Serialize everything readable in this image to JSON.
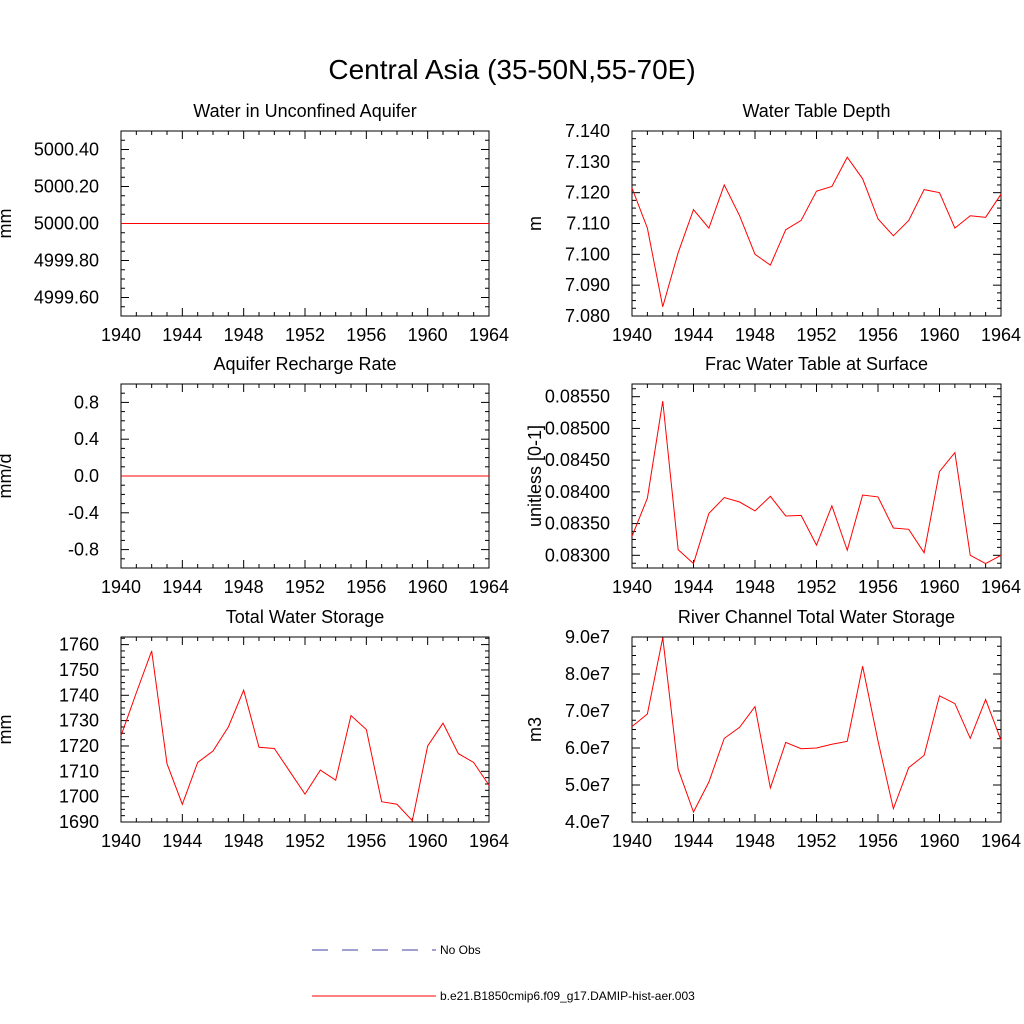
{
  "title": "Central Asia (35-50N,55-70E)",
  "colors": {
    "model": "#ff0000",
    "obs": "#4040a0",
    "axis": "#000000"
  },
  "legend": {
    "obs_label": "No Obs",
    "model_label": "b.e21.B1850cmip6.f09_g17.DAMIP-hist-aer.003"
  },
  "chart_data": [
    {
      "type": "line",
      "title": "Water in Unconfined Aquifer",
      "ylabel": "mm",
      "xlim": [
        1940,
        1964
      ],
      "ylim": [
        4999.5,
        5000.5
      ],
      "xticks": [
        1940,
        1944,
        1948,
        1952,
        1956,
        1960,
        1964
      ],
      "xtick_labels": [
        "1940",
        "1944",
        "1948",
        "1952",
        "1956",
        "1960",
        "1964"
      ],
      "yticks": [
        4999.6,
        4999.8,
        5000.0,
        5000.2,
        5000.4
      ],
      "ytick_labels": [
        "4999.60",
        "4999.80",
        "5000.00",
        "5000.20",
        "5000.40"
      ],
      "x": [
        1940,
        1941,
        1942,
        1943,
        1944,
        1945,
        1946,
        1947,
        1948,
        1949,
        1950,
        1951,
        1952,
        1953,
        1954,
        1955,
        1956,
        1957,
        1958,
        1959,
        1960,
        1961,
        1962,
        1963,
        1964
      ],
      "series": [
        {
          "values": [
            5000,
            5000,
            5000,
            5000,
            5000,
            5000,
            5000,
            5000,
            5000,
            5000,
            5000,
            5000,
            5000,
            5000,
            5000,
            5000,
            5000,
            5000,
            5000,
            5000,
            5000,
            5000,
            5000,
            5000,
            5000
          ]
        }
      ]
    },
    {
      "type": "line",
      "title": "Water Table Depth",
      "ylabel": "m",
      "xlim": [
        1940,
        1964
      ],
      "ylim": [
        7.08,
        7.14
      ],
      "xticks": [
        1940,
        1944,
        1948,
        1952,
        1956,
        1960,
        1964
      ],
      "xtick_labels": [
        "1940",
        "1944",
        "1948",
        "1952",
        "1956",
        "1960",
        "1964"
      ],
      "yticks": [
        7.08,
        7.09,
        7.1,
        7.11,
        7.12,
        7.13,
        7.14
      ],
      "ytick_labels": [
        "7.080",
        "7.090",
        "7.100",
        "7.110",
        "7.120",
        "7.130",
        "7.140"
      ],
      "x": [
        1940,
        1941,
        1942,
        1943,
        1944,
        1945,
        1946,
        1947,
        1948,
        1949,
        1950,
        1951,
        1952,
        1953,
        1954,
        1955,
        1956,
        1957,
        1958,
        1959,
        1960,
        1961,
        1962,
        1963,
        1964
      ],
      "series": [
        {
          "values": [
            7.1215,
            7.1085,
            7.083,
            7.1005,
            7.1145,
            7.1085,
            7.1225,
            7.1125,
            7.1,
            7.0965,
            7.108,
            7.111,
            7.1205,
            7.122,
            7.1315,
            7.1245,
            7.1115,
            7.106,
            7.111,
            7.121,
            7.12,
            7.1085,
            7.1125,
            7.112,
            7.1195
          ]
        }
      ]
    },
    {
      "type": "line",
      "title": "Aquifer Recharge Rate",
      "ylabel": "mm/d",
      "xlim": [
        1940,
        1964
      ],
      "ylim": [
        -1.0,
        1.0
      ],
      "xticks": [
        1940,
        1944,
        1948,
        1952,
        1956,
        1960,
        1964
      ],
      "xtick_labels": [
        "1940",
        "1944",
        "1948",
        "1952",
        "1956",
        "1960",
        "1964"
      ],
      "yticks": [
        -0.8,
        -0.4,
        0.0,
        0.4,
        0.8
      ],
      "ytick_labels": [
        "-0.8",
        "-0.4",
        "0.0",
        "0.4",
        "0.8"
      ],
      "x": [
        1940,
        1941,
        1942,
        1943,
        1944,
        1945,
        1946,
        1947,
        1948,
        1949,
        1950,
        1951,
        1952,
        1953,
        1954,
        1955,
        1956,
        1957,
        1958,
        1959,
        1960,
        1961,
        1962,
        1963,
        1964
      ],
      "series": [
        {
          "values": [
            0,
            0,
            0,
            0,
            0,
            0,
            0,
            0,
            0,
            0,
            0,
            0,
            0,
            0,
            0,
            0,
            0,
            0,
            0,
            0,
            0,
            0,
            0,
            0,
            0
          ]
        }
      ]
    },
    {
      "type": "line",
      "title": "Frac Water Table at Surface",
      "ylabel": "unitless [0-1]",
      "xlim": [
        1940,
        1964
      ],
      "ylim": [
        0.0828,
        0.0857
      ],
      "xticks": [
        1940,
        1944,
        1948,
        1952,
        1956,
        1960,
        1964
      ],
      "xtick_labels": [
        "1940",
        "1944",
        "1948",
        "1952",
        "1956",
        "1960",
        "1964"
      ],
      "yticks": [
        0.083,
        0.0835,
        0.084,
        0.0845,
        0.085,
        0.0855
      ],
      "ytick_labels": [
        "0.08300",
        "0.08350",
        "0.08400",
        "0.08450",
        "0.08500",
        "0.08550"
      ],
      "x": [
        1940,
        1941,
        1942,
        1943,
        1944,
        1945,
        1946,
        1947,
        1948,
        1949,
        1950,
        1951,
        1952,
        1953,
        1954,
        1955,
        1956,
        1957,
        1958,
        1959,
        1960,
        1961,
        1962,
        1963,
        1964
      ],
      "series": [
        {
          "values": [
            0.0833,
            0.0839,
            0.08543,
            0.08309,
            0.08287,
            0.08366,
            0.08391,
            0.08384,
            0.0837,
            0.08393,
            0.08362,
            0.08363,
            0.08316,
            0.08378,
            0.08308,
            0.08395,
            0.08392,
            0.08343,
            0.08341,
            0.08304,
            0.08432,
            0.08462,
            0.083,
            0.08287,
            0.083
          ]
        }
      ]
    },
    {
      "type": "line",
      "title": "Total Water Storage",
      "ylabel": "mm",
      "xlim": [
        1940,
        1964
      ],
      "ylim": [
        1690,
        1763
      ],
      "xticks": [
        1940,
        1944,
        1948,
        1952,
        1956,
        1960,
        1964
      ],
      "xtick_labels": [
        "1940",
        "1944",
        "1948",
        "1952",
        "1956",
        "1960",
        "1964"
      ],
      "yticks": [
        1690,
        1700,
        1710,
        1720,
        1730,
        1740,
        1750,
        1760
      ],
      "ytick_labels": [
        "1690",
        "1700",
        "1710",
        "1720",
        "1730",
        "1740",
        "1750",
        "1760"
      ],
      "x": [
        1940,
        1941,
        1942,
        1943,
        1944,
        1945,
        1946,
        1947,
        1948,
        1949,
        1950,
        1951,
        1952,
        1953,
        1954,
        1955,
        1956,
        1957,
        1958,
        1959,
        1960,
        1961,
        1962,
        1963,
        1964
      ],
      "series": [
        {
          "values": [
            1724,
            1741,
            1757.5,
            1713,
            1697,
            1713.5,
            1718,
            1727.5,
            1742,
            1719.5,
            1719,
            1710,
            1701,
            1710.5,
            1706.5,
            1732,
            1726.5,
            1698,
            1697,
            1690.5,
            1720,
            1729,
            1717,
            1713.5,
            1704.5
          ]
        }
      ]
    },
    {
      "type": "line",
      "title": "River Channel Total Water Storage",
      "ylabel": "m3",
      "xlim": [
        1940,
        1964
      ],
      "ylim": [
        40000000,
        90000000
      ],
      "xticks": [
        1940,
        1944,
        1948,
        1952,
        1956,
        1960,
        1964
      ],
      "xtick_labels": [
        "1940",
        "1944",
        "1948",
        "1952",
        "1956",
        "1960",
        "1964"
      ],
      "yticks": [
        40000000,
        50000000,
        60000000,
        70000000,
        80000000,
        90000000
      ],
      "ytick_labels": [
        "4.0e7",
        "5.0e7",
        "6.0e7",
        "7.0e7",
        "8.0e7",
        "9.0e7"
      ],
      "x": [
        1940,
        1941,
        1942,
        1943,
        1944,
        1945,
        1946,
        1947,
        1948,
        1949,
        1950,
        1951,
        1952,
        1953,
        1954,
        1955,
        1956,
        1957,
        1958,
        1959,
        1960,
        1961,
        1962,
        1963,
        1964
      ],
      "series": [
        {
          "values": [
            65800000,
            69200000,
            89800000,
            54300000,
            42700000,
            50800000,
            62600000,
            65600000,
            71200000,
            49200000,
            61500000,
            59800000,
            60000000,
            61000000,
            61800000,
            82100000,
            61900000,
            43600000,
            54700000,
            58000000,
            74100000,
            72000000,
            62600000,
            73100000,
            62100000
          ]
        }
      ]
    }
  ]
}
